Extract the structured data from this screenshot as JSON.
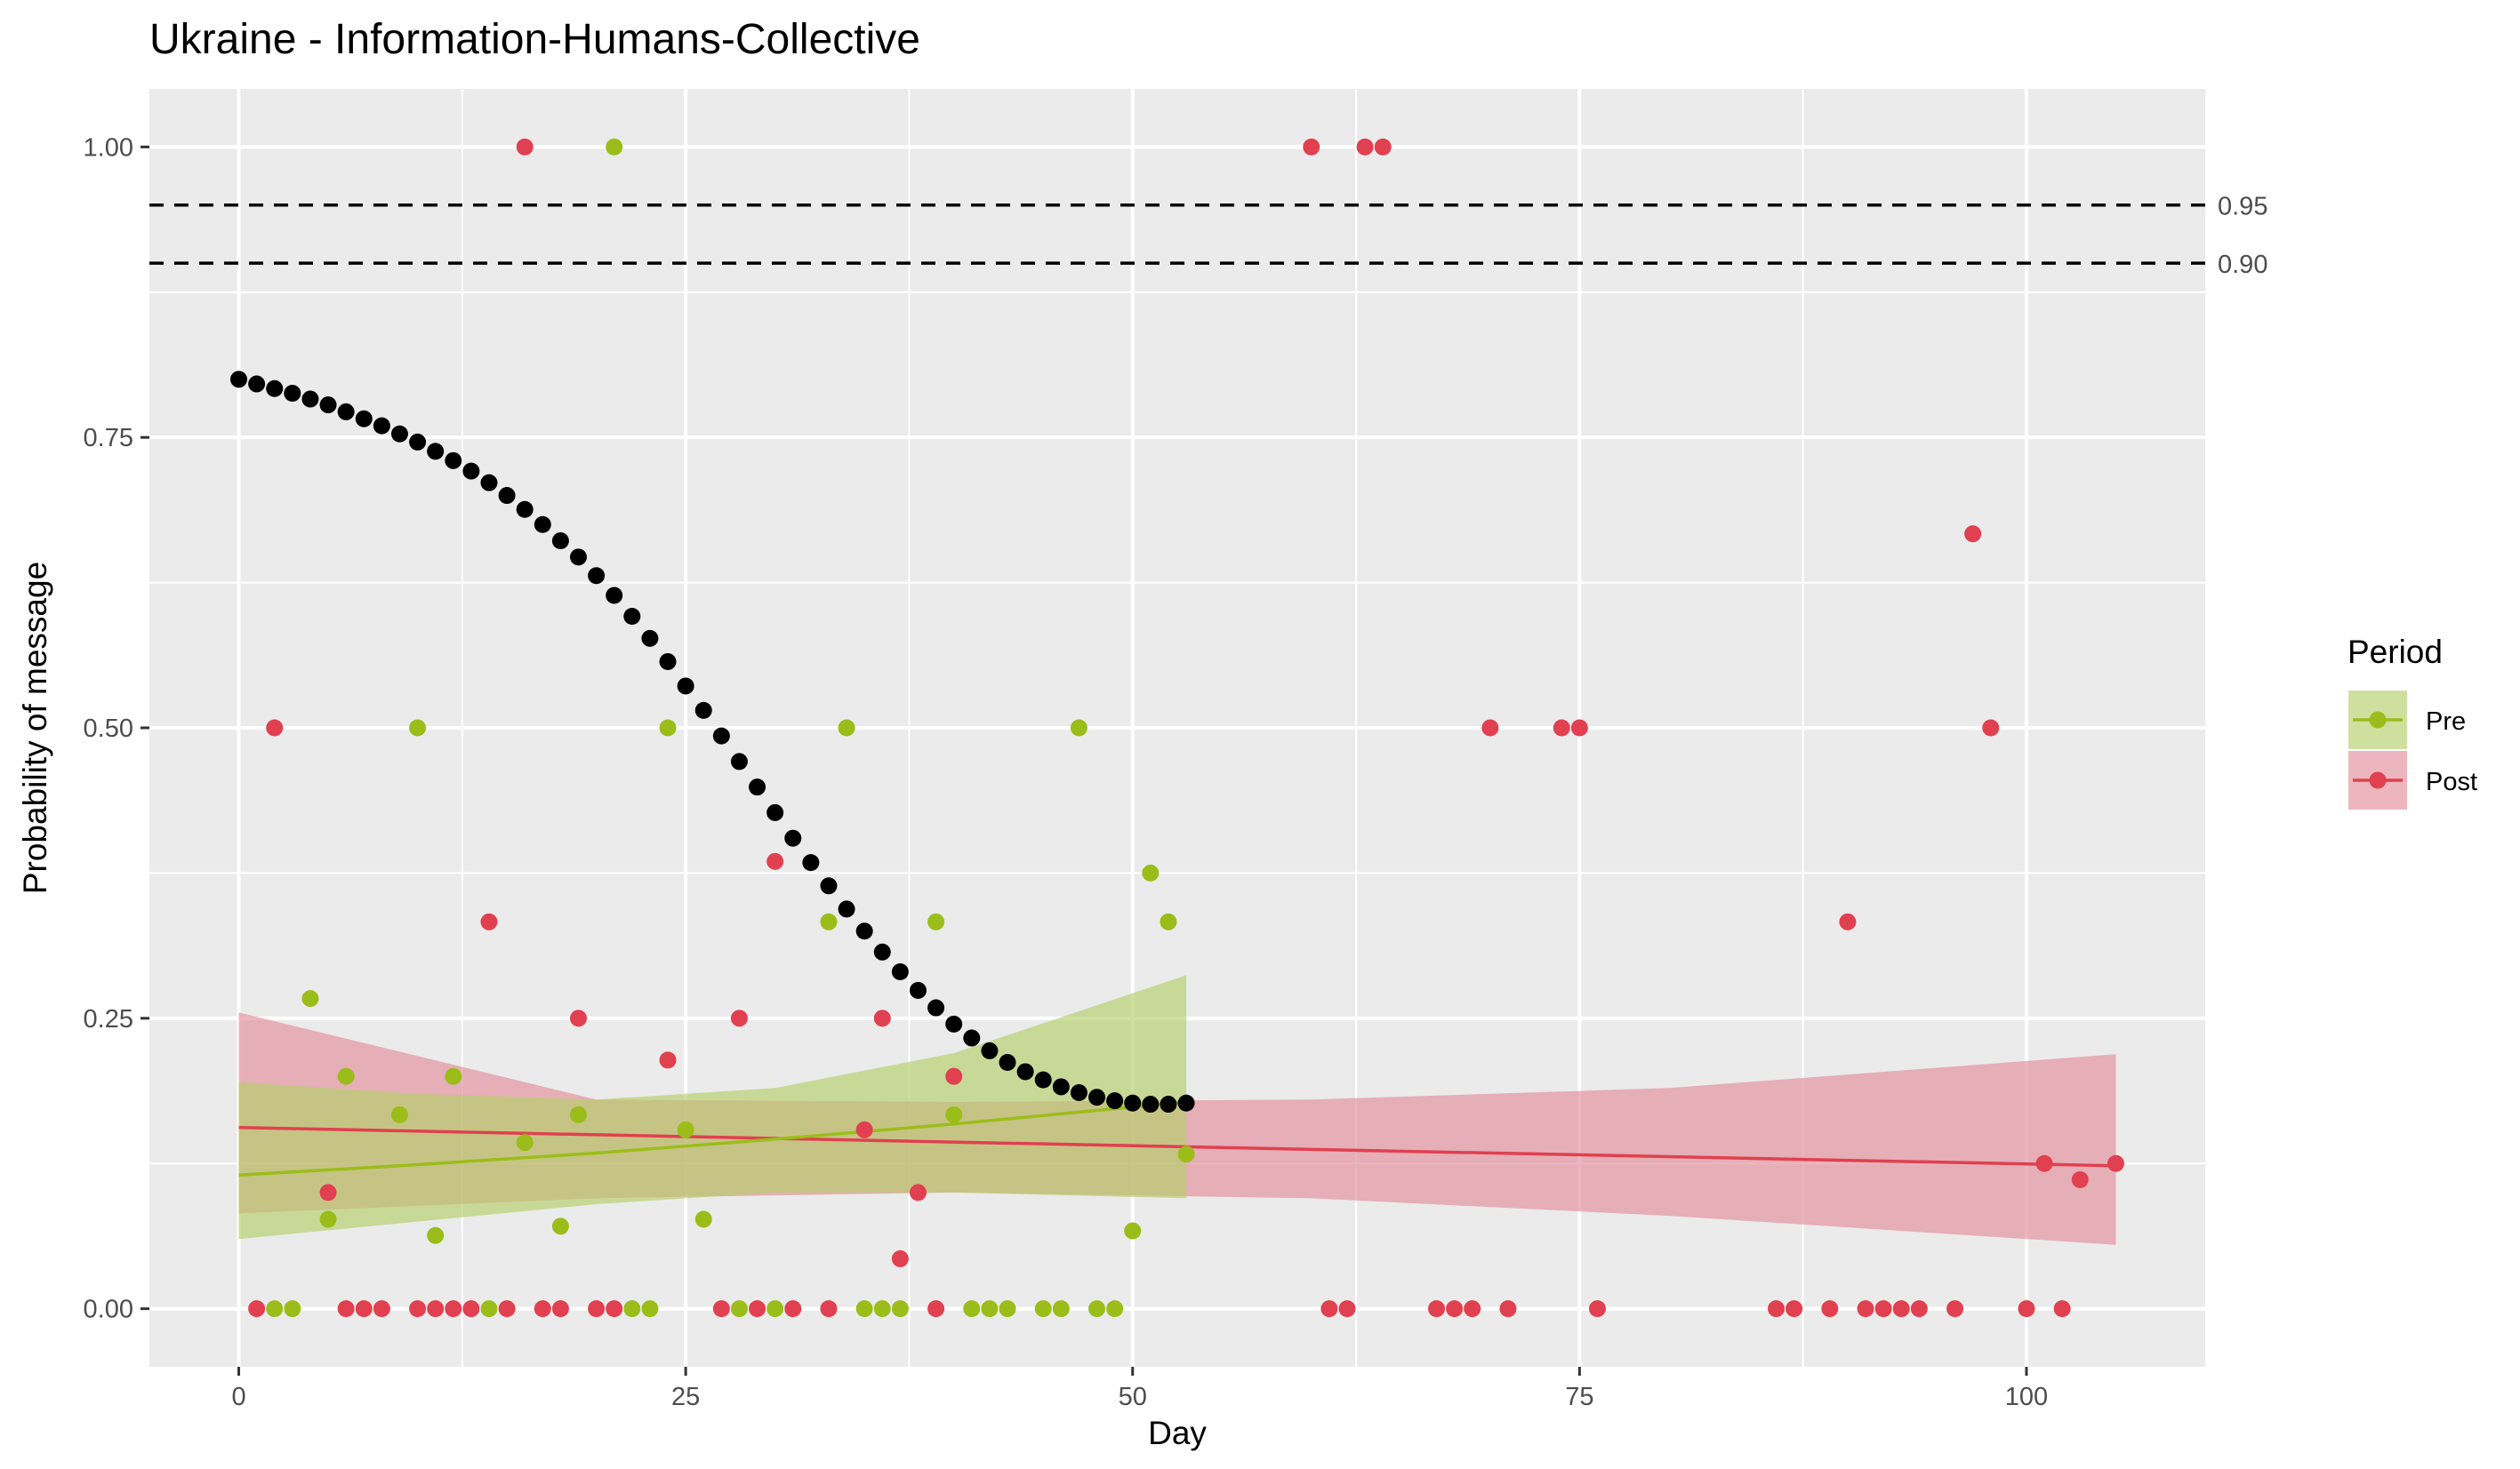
{
  "chart_data": {
    "type": "scatter",
    "title": "Ukraine - Information-Humans-Collective",
    "xlabel": "Day",
    "ylabel": "Probability of message",
    "xlim": [
      -5,
      110
    ],
    "ylim": [
      -0.05,
      1.05
    ],
    "x_ticks": [
      0,
      25,
      50,
      75,
      100
    ],
    "x_tick_labels": [
      "0",
      "25",
      "50",
      "75",
      "100"
    ],
    "y_ticks": [
      0,
      0.25,
      0.5,
      0.75,
      1.0
    ],
    "y_tick_labels": [
      "0.00",
      "0.25",
      "0.50",
      "0.75",
      "1.00"
    ],
    "grid": true,
    "reference_lines": [
      {
        "y": 0.95,
        "label": "0.95",
        "style": "dashed"
      },
      {
        "y": 0.9,
        "label": "0.90",
        "style": "dashed"
      }
    ],
    "legend": {
      "title": "Period",
      "placement": "right",
      "entries": [
        {
          "key": "pre",
          "label": "Pre"
        },
        {
          "key": "post",
          "label": "Post"
        }
      ]
    },
    "colors": {
      "pre": "#9bbd1a",
      "post": "#e0404f",
      "pre_band": "#b5d06a",
      "post_band": "#e48e9a",
      "threshold": "#000000",
      "panel": "#ebebeb",
      "grid": "#ffffff"
    },
    "series": [
      {
        "key": "pre",
        "points": [
          [
            2,
            0
          ],
          [
            3,
            0
          ],
          [
            4,
            0.267
          ],
          [
            5,
            0.077
          ],
          [
            6,
            0.2
          ],
          [
            9,
            0.167
          ],
          [
            10,
            0.5
          ],
          [
            11,
            0.063
          ],
          [
            12,
            0.2
          ],
          [
            14,
            0
          ],
          [
            16,
            0.143
          ],
          [
            18,
            0.071
          ],
          [
            19,
            0.167
          ],
          [
            21,
            1.0
          ],
          [
            22,
            0
          ],
          [
            23,
            0
          ],
          [
            24,
            0.5
          ],
          [
            25,
            0.154
          ],
          [
            26,
            0.077
          ],
          [
            28,
            0
          ],
          [
            30,
            0
          ],
          [
            33,
            0.333
          ],
          [
            34,
            0.5
          ],
          [
            35,
            0
          ],
          [
            36,
            0
          ],
          [
            37,
            0
          ],
          [
            39,
            0.333
          ],
          [
            40,
            0.167
          ],
          [
            41,
            0
          ],
          [
            42,
            0
          ],
          [
            43,
            0
          ],
          [
            45,
            0
          ],
          [
            46,
            0
          ],
          [
            47,
            0.5
          ],
          [
            48,
            0
          ],
          [
            49,
            0
          ],
          [
            50,
            0.067
          ],
          [
            51,
            0.375
          ],
          [
            52,
            0.333
          ],
          [
            53,
            0.133
          ]
        ],
        "fit": {
          "x": [
            0,
            10,
            20,
            30,
            40,
            53
          ],
          "y": [
            0.115,
            0.124,
            0.134,
            0.146,
            0.159,
            0.178
          ]
        },
        "band": {
          "x": [
            0,
            10,
            20,
            30,
            40,
            53
          ],
          "lower": [
            0.06,
            0.075,
            0.09,
            0.1,
            0.1,
            0.095
          ],
          "upper": [
            0.195,
            0.185,
            0.18,
            0.19,
            0.22,
            0.287
          ]
        }
      },
      {
        "key": "post",
        "points": [
          [
            1,
            0
          ],
          [
            2,
            0.5
          ],
          [
            5,
            0.1
          ],
          [
            6,
            0
          ],
          [
            7,
            0
          ],
          [
            8,
            0
          ],
          [
            10,
            0
          ],
          [
            11,
            0
          ],
          [
            12,
            0
          ],
          [
            13,
            0
          ],
          [
            14,
            0.333
          ],
          [
            15,
            0
          ],
          [
            16,
            1.0
          ],
          [
            17,
            0
          ],
          [
            18,
            0
          ],
          [
            19,
            0.25
          ],
          [
            20,
            0
          ],
          [
            21,
            0
          ],
          [
            24,
            0.214
          ],
          [
            27,
            0
          ],
          [
            28,
            0.25
          ],
          [
            29,
            0
          ],
          [
            30,
            0.385
          ],
          [
            31,
            0
          ],
          [
            33,
            0
          ],
          [
            35,
            0.154
          ],
          [
            36,
            0.25
          ],
          [
            37,
            0.043
          ],
          [
            38,
            0.1
          ],
          [
            39,
            0
          ],
          [
            40,
            0.2
          ],
          [
            60,
            1.0
          ],
          [
            61,
            0
          ],
          [
            62,
            0
          ],
          [
            63,
            1.0
          ],
          [
            64,
            1.0
          ],
          [
            67,
            0
          ],
          [
            68,
            0
          ],
          [
            69,
            0
          ],
          [
            70,
            0.5
          ],
          [
            71,
            0
          ],
          [
            74,
            0.5
          ],
          [
            75,
            0.5
          ],
          [
            76,
            0
          ],
          [
            86,
            0
          ],
          [
            87,
            0
          ],
          [
            89,
            0
          ],
          [
            90,
            0.333
          ],
          [
            91,
            0
          ],
          [
            92,
            0
          ],
          [
            93,
            0
          ],
          [
            94,
            0
          ],
          [
            96,
            0
          ],
          [
            97,
            0.667
          ],
          [
            98,
            0.5
          ],
          [
            100,
            0
          ],
          [
            101,
            0.125
          ],
          [
            102,
            0
          ],
          [
            103,
            0.111
          ],
          [
            105,
            0.125
          ]
        ],
        "fit": {
          "x": [
            0,
            105
          ],
          "y": [
            0.156,
            0.123
          ]
        },
        "band": {
          "x": [
            0,
            20,
            40,
            60,
            80,
            105
          ],
          "lower": [
            0.082,
            0.095,
            0.1,
            0.095,
            0.08,
            0.055
          ],
          "upper": [
            0.255,
            0.18,
            0.178,
            0.18,
            0.19,
            0.219
          ]
        }
      }
    ],
    "threshold_curve": {
      "x": [
        0,
        1,
        2,
        3,
        4,
        5,
        6,
        7,
        8,
        9,
        10,
        11,
        12,
        13,
        14,
        15,
        16,
        17,
        18,
        19,
        20,
        21,
        22,
        23,
        24,
        25,
        26,
        27,
        28,
        29,
        30,
        31,
        32,
        33,
        34,
        35,
        36,
        37,
        38,
        39,
        40,
        41,
        42,
        43,
        44,
        45,
        46,
        47,
        48,
        49,
        50,
        51,
        52,
        53
      ],
      "y": [
        0.8,
        0.796,
        0.792,
        0.788,
        0.783,
        0.778,
        0.772,
        0.766,
        0.76,
        0.753,
        0.746,
        0.738,
        0.73,
        0.721,
        0.711,
        0.7,
        0.688,
        0.675,
        0.661,
        0.647,
        0.631,
        0.614,
        0.596,
        0.577,
        0.557,
        0.536,
        0.515,
        0.493,
        0.471,
        0.449,
        0.427,
        0.405,
        0.384,
        0.364,
        0.344,
        0.325,
        0.307,
        0.29,
        0.274,
        0.259,
        0.245,
        0.233,
        0.222,
        0.212,
        0.204,
        0.197,
        0.191,
        0.186,
        0.182,
        0.179,
        0.177,
        0.176,
        0.176,
        0.177
      ]
    }
  }
}
